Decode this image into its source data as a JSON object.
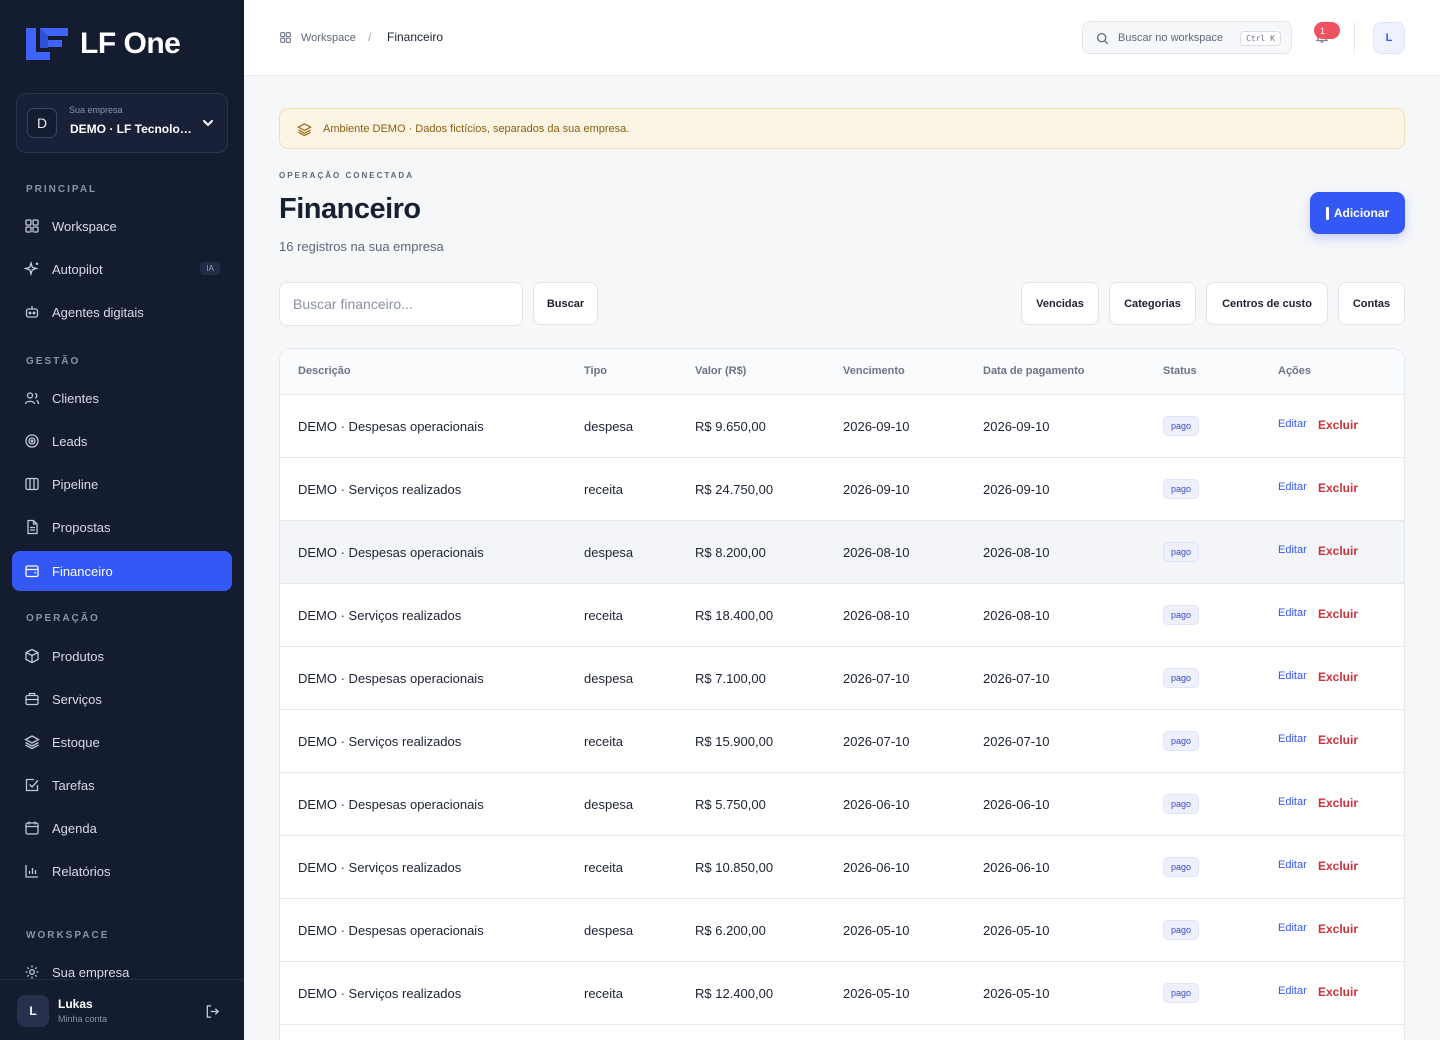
{
  "brand": {
    "name": "LF One"
  },
  "company": {
    "label": "Sua empresa",
    "avatar": "D",
    "name": "DEMO · LF Tecnologia"
  },
  "sidebar": {
    "sections": [
      {
        "title": "PRINCIPAL",
        "items": [
          {
            "label": "Workspace",
            "icon": "grid-icon"
          },
          {
            "label": "Autopilot",
            "icon": "sparkles-icon",
            "badge": "IA"
          },
          {
            "label": "Agentes digitais",
            "icon": "bot-icon"
          }
        ]
      },
      {
        "title": "GESTÃO",
        "items": [
          {
            "label": "Clientes",
            "icon": "users-icon"
          },
          {
            "label": "Leads",
            "icon": "target-icon"
          },
          {
            "label": "Pipeline",
            "icon": "kanban-icon"
          },
          {
            "label": "Propostas",
            "icon": "file-icon"
          },
          {
            "label": "Financeiro",
            "icon": "wallet-icon",
            "active": true
          }
        ]
      },
      {
        "title": "OPERAÇÃO",
        "items": [
          {
            "label": "Produtos",
            "icon": "package-icon"
          },
          {
            "label": "Serviços",
            "icon": "briefcase-icon"
          },
          {
            "label": "Estoque",
            "icon": "layers-icon"
          },
          {
            "label": "Tarefas",
            "icon": "checkbox-icon"
          },
          {
            "label": "Agenda",
            "icon": "calendar-icon"
          },
          {
            "label": "Relatórios",
            "icon": "chart-icon"
          }
        ]
      },
      {
        "title": "WORKSPACE",
        "items": [
          {
            "label": "Sua empresa",
            "icon": "gear-icon"
          }
        ]
      }
    ]
  },
  "user": {
    "avatar": "L",
    "name": "Lukas",
    "subtitle": "Minha conta"
  },
  "topbar": {
    "breadcrumb_root": "Workspace",
    "breadcrumb_sep": "/",
    "breadcrumb_current": "Financeiro",
    "search_placeholder": "Buscar no workspace",
    "search_shortcut": "Ctrl K",
    "notification_count": "1",
    "avatar": "L"
  },
  "banner": {
    "text": "Ambiente DEMO · Dados fictícios, separados da sua empresa."
  },
  "header": {
    "eyebrow": "OPERAÇÃO CONECTADA",
    "title": "Financeiro",
    "subtitle": "16 registros na sua empresa",
    "add_label": "Adicionar"
  },
  "filters": {
    "search_placeholder": "Buscar financeiro...",
    "search_button": "Buscar",
    "buttons": [
      "Vencidas",
      "Categorias",
      "Centros de custo",
      "Contas"
    ]
  },
  "table": {
    "columns": [
      "Descrição",
      "Tipo",
      "Valor (R$)",
      "Vencimento",
      "Data de pagamento",
      "Status",
      "Ações"
    ],
    "edit_label": "Editar",
    "delete_label": "Excluir",
    "rows": [
      {
        "descricao": "DEMO · Despesas operacionais",
        "tipo": "despesa",
        "valor": "R$ 9.650,00",
        "vencimento": "2026-09-10",
        "pagamento": "2026-09-10",
        "status": "pago"
      },
      {
        "descricao": "DEMO · Serviços realizados",
        "tipo": "receita",
        "valor": "R$ 24.750,00",
        "vencimento": "2026-09-10",
        "pagamento": "2026-09-10",
        "status": "pago"
      },
      {
        "descricao": "DEMO · Despesas operacionais",
        "tipo": "despesa",
        "valor": "R$ 8.200,00",
        "vencimento": "2026-08-10",
        "pagamento": "2026-08-10",
        "status": "pago"
      },
      {
        "descricao": "DEMO · Serviços realizados",
        "tipo": "receita",
        "valor": "R$ 18.400,00",
        "vencimento": "2026-08-10",
        "pagamento": "2026-08-10",
        "status": "pago"
      },
      {
        "descricao": "DEMO · Despesas operacionais",
        "tipo": "despesa",
        "valor": "R$ 7.100,00",
        "vencimento": "2026-07-10",
        "pagamento": "2026-07-10",
        "status": "pago"
      },
      {
        "descricao": "DEMO · Serviços realizados",
        "tipo": "receita",
        "valor": "R$ 15.900,00",
        "vencimento": "2026-07-10",
        "pagamento": "2026-07-10",
        "status": "pago"
      },
      {
        "descricao": "DEMO · Despesas operacionais",
        "tipo": "despesa",
        "valor": "R$ 5.750,00",
        "vencimento": "2026-06-10",
        "pagamento": "2026-06-10",
        "status": "pago"
      },
      {
        "descricao": "DEMO · Serviços realizados",
        "tipo": "receita",
        "valor": "R$ 10.850,00",
        "vencimento": "2026-06-10",
        "pagamento": "2026-06-10",
        "status": "pago"
      },
      {
        "descricao": "DEMO · Despesas operacionais",
        "tipo": "despesa",
        "valor": "R$ 6.200,00",
        "vencimento": "2026-05-10",
        "pagamento": "2026-05-10",
        "status": "pago"
      },
      {
        "descricao": "DEMO · Serviços realizados",
        "tipo": "receita",
        "valor": "R$ 12.400,00",
        "vencimento": "2026-05-10",
        "pagamento": "2026-05-10",
        "status": "pago"
      }
    ]
  },
  "colors": {
    "accent": "#3358f6",
    "sidebar_bg": "#141c30",
    "danger": "#c8333d",
    "banner_bg": "#fdf5e3"
  }
}
